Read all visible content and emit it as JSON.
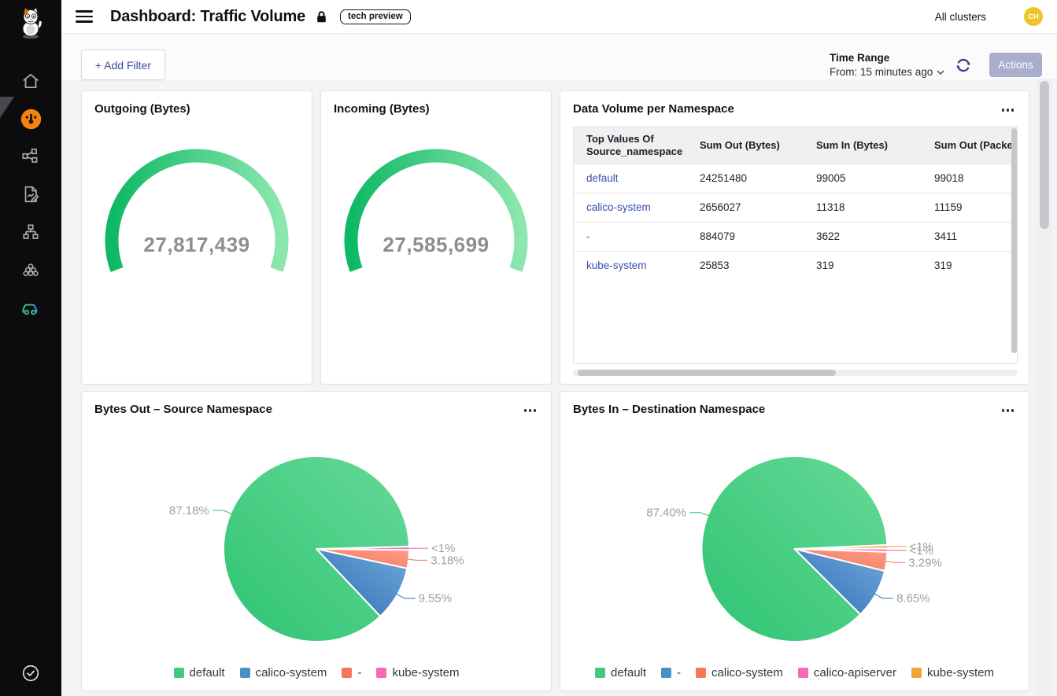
{
  "header": {
    "title": "Dashboard: Traffic Volume",
    "badge": "tech preview",
    "cluster_selector": "All clusters",
    "avatar_initials": "CH",
    "avatar_color": "#eec427"
  },
  "sidebar": {
    "icons": [
      "home-icon",
      "dashboard-gauge-icon",
      "service-graph-icon",
      "report-icon",
      "sitemap-icon",
      "cluster-icon",
      "car-icon",
      "verified-badge-icon"
    ],
    "active_icon": "dashboard-gauge-icon",
    "accent_color": "#f5820d"
  },
  "filter_bar": {
    "add_filter": "+ Add Filter",
    "time_range_label": "Time Range",
    "time_range_value": "From: 15 minutes ago",
    "actions": "Actions"
  },
  "panels": {
    "outgoing": {
      "title": "Outgoing (Bytes)",
      "value": "27,817,439"
    },
    "incoming": {
      "title": "Incoming (Bytes)",
      "value": "27,585,699"
    },
    "table": {
      "title": "Data Volume per Namespace",
      "columns": [
        "Top Values Of Source_namespace",
        "Sum Out (Bytes)",
        "Sum In (Bytes)",
        "Sum Out (Packet"
      ],
      "rows": [
        {
          "namespace": "default",
          "sum_out": "24251480",
          "sum_in": "99005",
          "sum_out_packets": "99018"
        },
        {
          "namespace": "calico-system",
          "sum_out": "2656027",
          "sum_in": "11318",
          "sum_out_packets": "11159"
        },
        {
          "namespace": "-",
          "sum_out": "884079",
          "sum_in": "3622",
          "sum_out_packets": "3411"
        },
        {
          "namespace": "kube-system",
          "sum_out": "25853",
          "sum_in": "319",
          "sum_out_packets": "319"
        }
      ],
      "link_color": "#3a4db1"
    },
    "pie_out": {
      "title": "Bytes Out – Source Namespace"
    },
    "pie_in": {
      "title": "Bytes In – Destination Namespace"
    }
  },
  "chart_data": [
    {
      "id": "gauge-outgoing",
      "type": "gauge",
      "title": "Outgoing (Bytes)",
      "value": 27817439,
      "display_value": "27,817,439",
      "color_start": "#0db964",
      "color_end": "#8ce7ae",
      "start_angle": 200,
      "end_angle": -20
    },
    {
      "id": "gauge-incoming",
      "type": "gauge",
      "title": "Incoming (Bytes)",
      "value": 27585699,
      "display_value": "27,585,699",
      "color_start": "#0db964",
      "color_end": "#8ce7ae",
      "start_angle": 200,
      "end_angle": -20
    },
    {
      "id": "pie-bytes-out",
      "type": "pie",
      "title": "Bytes Out – Source Namespace",
      "start_angle": 1.5,
      "legend_position": "bottom",
      "slices": [
        {
          "name": "kube-system",
          "pct": 0.09,
          "label": "<1%",
          "color1": "#f55ba9",
          "color2": "#fa86c6"
        },
        {
          "name": "-",
          "pct": 3.18,
          "label": "3.18%",
          "color1": "#f7765c",
          "color2": "#fa9d86"
        },
        {
          "name": "calico-system",
          "pct": 9.55,
          "label": "9.55%",
          "color1": "#2e6eb4",
          "color2": "#70a8da"
        },
        {
          "name": "default",
          "pct": 87.18,
          "label": "87.18%",
          "color1": "#2fc474",
          "color2": "#66d996"
        }
      ],
      "legend": [
        {
          "name": "default",
          "color": "#45c87d"
        },
        {
          "name": "calico-system",
          "color": "#4a90c5"
        },
        {
          "name": "-",
          "color": "#f8765c"
        },
        {
          "name": "kube-system",
          "color": "#f96ab4"
        }
      ]
    },
    {
      "id": "pie-bytes-in",
      "type": "pie",
      "title": "Bytes In – Destination Namespace",
      "start_angle": 2.5,
      "legend_position": "bottom",
      "slices": [
        {
          "name": "kube-system",
          "pct": 0.33,
          "label": "<1%",
          "color1": "#efa22f",
          "color2": "#f6c163"
        },
        {
          "name": "calico-apiserver",
          "pct": 0.33,
          "label": "<1%",
          "color1": "#f55ba9",
          "color2": "#fa86c6"
        },
        {
          "name": "calico-system",
          "pct": 3.29,
          "label": "3.29%",
          "color1": "#f7765c",
          "color2": "#fa9d86"
        },
        {
          "name": "-",
          "pct": 8.65,
          "label": "8.65%",
          "color1": "#2e6eb4",
          "color2": "#70a8da"
        },
        {
          "name": "default",
          "pct": 87.4,
          "label": "87.40%",
          "color1": "#2fc474",
          "color2": "#66d996"
        }
      ],
      "legend": [
        {
          "name": "default",
          "color": "#45c87d"
        },
        {
          "name": "-",
          "color": "#4a90c5"
        },
        {
          "name": "calico-system",
          "color": "#f8765c"
        },
        {
          "name": "calico-apiserver",
          "color": "#f96ab4"
        },
        {
          "name": "kube-system",
          "color": "#f2a33c"
        }
      ]
    }
  ]
}
